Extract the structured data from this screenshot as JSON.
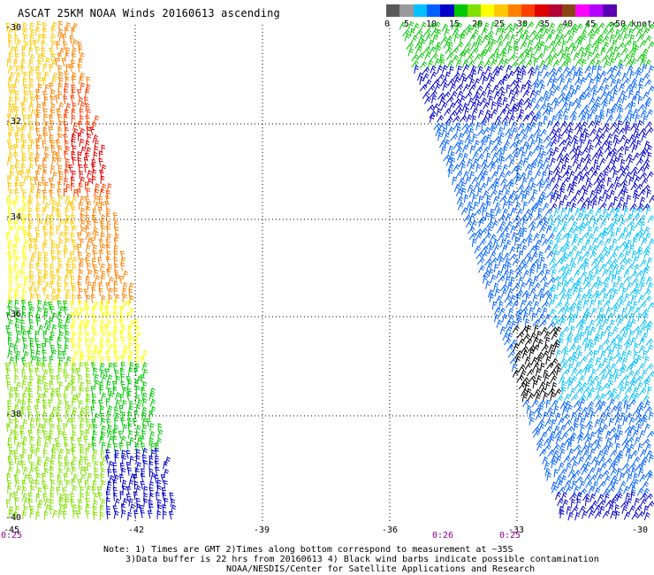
{
  "title": "ASCAT 25KM NOAA Winds 20160613 ascending",
  "colorbar": {
    "colors": [
      "#5a5a5a",
      "#9a9a9a",
      "#00bfff",
      "#0060ff",
      "#0000c8",
      "#00c800",
      "#80e000",
      "#ffff00",
      "#ffc800",
      "#ff8000",
      "#ff4000",
      "#e00000",
      "#b40032",
      "#8b4513",
      "#ff00ff",
      "#b400ff",
      "#5a00b4"
    ],
    "labels": [
      "0",
      "5",
      "10",
      "15",
      "20",
      "25",
      "30",
      "35",
      "40",
      "45",
      ">50 knots"
    ]
  },
  "axes": {
    "lat_labels": [
      "-30",
      "-32",
      "-34",
      "-36",
      "-38",
      "-40"
    ],
    "lon_labels": [
      "-45",
      "-42",
      "-39",
      "-36",
      "-33",
      "-30"
    ]
  },
  "time_labels": [
    "0:25",
    "0:26",
    "0:25"
  ],
  "notes": [
    "Note: 1) Times are GMT 2)Times along bottom correspond to measurement at ~35S",
    "3)Data buffer is 22 hrs from 20160613 4) Black wind barbs indicate possible contamination",
    "NOAA/NESDIS/Center for Satellite Applications and Research"
  ]
}
